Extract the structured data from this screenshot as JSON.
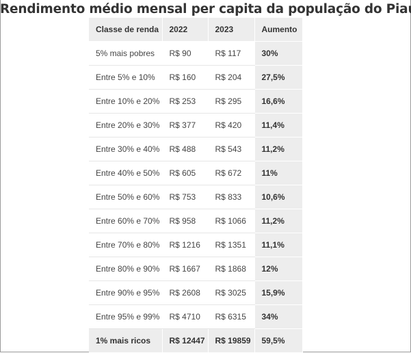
{
  "title": "Rendimento médio mensal per capita da população do Piauí",
  "table": {
    "headers": [
      "Classe de renda",
      "2022",
      "2023",
      "Aumento"
    ],
    "rows": [
      [
        "5% mais pobres",
        "R$ 90",
        "R$ 117",
        "30%"
      ],
      [
        "Entre 5% e 10%",
        "R$ 160",
        "R$ 204",
        "27,5%"
      ],
      [
        "Entre 10% e 20%",
        "R$ 253",
        "R$ 295",
        "16,6%"
      ],
      [
        "Entre 20% e 30%",
        "R$ 377",
        "R$ 420",
        "11,4%"
      ],
      [
        "Entre 30% e 40%",
        "R$ 488",
        "R$ 543",
        "11,2%"
      ],
      [
        "Entre 40% e 50%",
        "R$ 605",
        "R$ 672",
        "11%"
      ],
      [
        "Entre 50% e 60%",
        "R$ 753",
        "R$ 833",
        "10,6%"
      ],
      [
        "Entre 60% e 70%",
        "R$ 958",
        "R$ 1066",
        "11,2%"
      ],
      [
        "Entre 70% e 80%",
        "R$ 1216",
        "R$ 1351",
        "11,1%"
      ],
      [
        "Entre 80% e 90%",
        "R$ 1667",
        "R$ 1868",
        "12%"
      ],
      [
        "Entre 90% e 95%",
        "R$ 2608",
        "R$ 3025",
        "15,9%"
      ],
      [
        "Entre 95% e 99%",
        "R$ 4710",
        "R$ 6315",
        "34%"
      ],
      [
        "1% mais ricos",
        "R$ 12447",
        "R$ 19859",
        "59,5%"
      ]
    ]
  },
  "colors": {
    "header_bg": "#ededed",
    "highlight_bg": "#ededed",
    "text": "#333333"
  }
}
